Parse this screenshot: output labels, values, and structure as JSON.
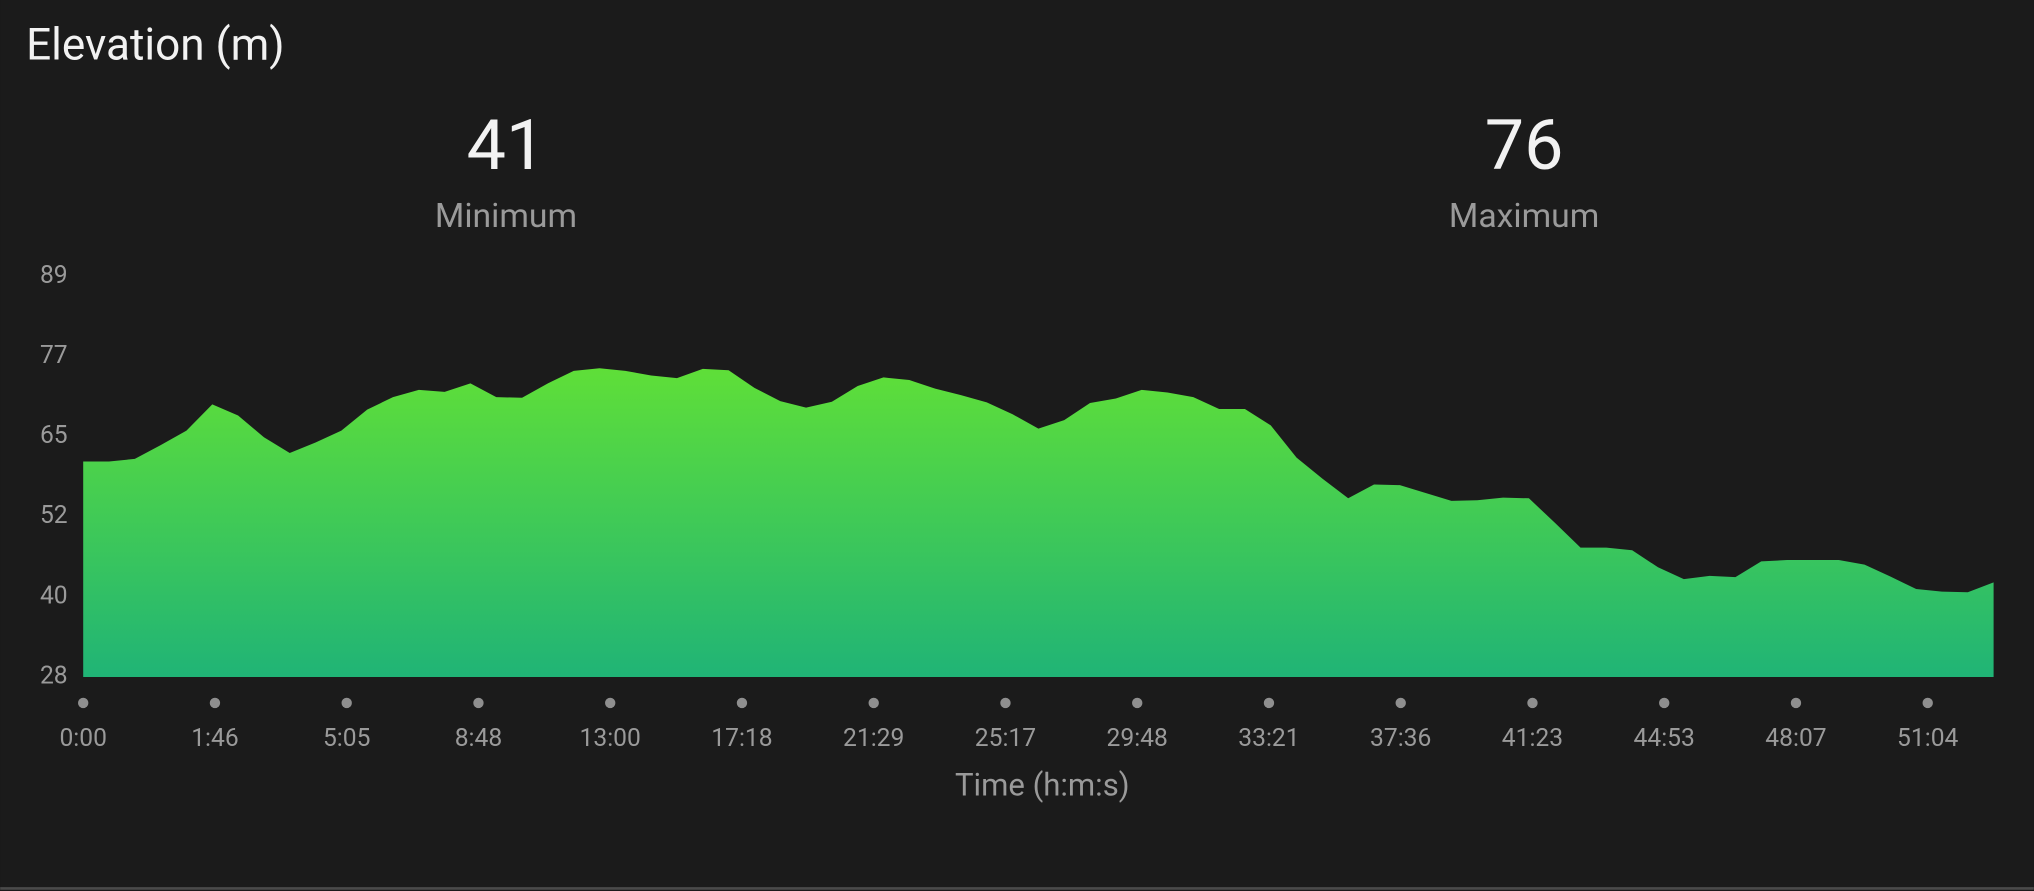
{
  "chart_data": {
    "type": "area",
    "title": "Elevation (m)",
    "stats": [
      {
        "value": 41,
        "label": "Minimum"
      },
      {
        "value": 76,
        "label": "Maximum"
      }
    ],
    "x_label": "Time (h:m:s)",
    "xticks": [
      "0:00",
      "1:46",
      "5:05",
      "8:48",
      "13:00",
      "17:18",
      "21:29",
      "25:17",
      "29:48",
      "33:21",
      "37:36",
      "41:23",
      "44:53",
      "48:07",
      "51:04"
    ],
    "values": [
      60.8,
      60.8,
      61.2,
      63.3,
      65.5,
      69.5,
      67.8,
      64.5,
      62.1,
      63.7,
      65.5,
      68.7,
      70.6,
      71.7,
      71.4,
      72.7,
      70.6,
      70.5,
      72.7,
      74.6,
      75.0,
      74.6,
      73.9,
      73.5,
      74.9,
      74.7,
      72.0,
      70.0,
      69.0,
      69.9,
      72.3,
      73.6,
      73.2,
      71.9,
      70.9,
      69.8,
      68.0,
      65.8,
      67.1,
      69.7,
      70.4,
      71.7,
      71.3,
      70.6,
      68.8,
      68.8,
      66.3,
      61.4,
      58.2,
      55.2,
      57.3,
      57.2,
      56.0,
      54.8,
      54.9,
      55.3,
      55.2,
      51.5,
      47.7,
      47.7,
      47.3,
      44.7,
      42.9,
      43.4,
      43.2,
      45.6,
      45.8,
      45.8,
      45.8,
      45.1,
      43.3,
      41.4,
      41.0,
      40.9,
      42.4
    ],
    "ylim": [
      28,
      89
    ],
    "yticks": [
      89,
      {
        "value": 76.8,
        "label": "77"
      },
      {
        "value": 64.6,
        "label": "65"
      },
      {
        "value": 52.4,
        "label": "52"
      },
      {
        "value": 40.2,
        "label": "40"
      },
      28
    ],
    "colors": [
      "#5fdf38",
      "#20b476"
    ]
  }
}
